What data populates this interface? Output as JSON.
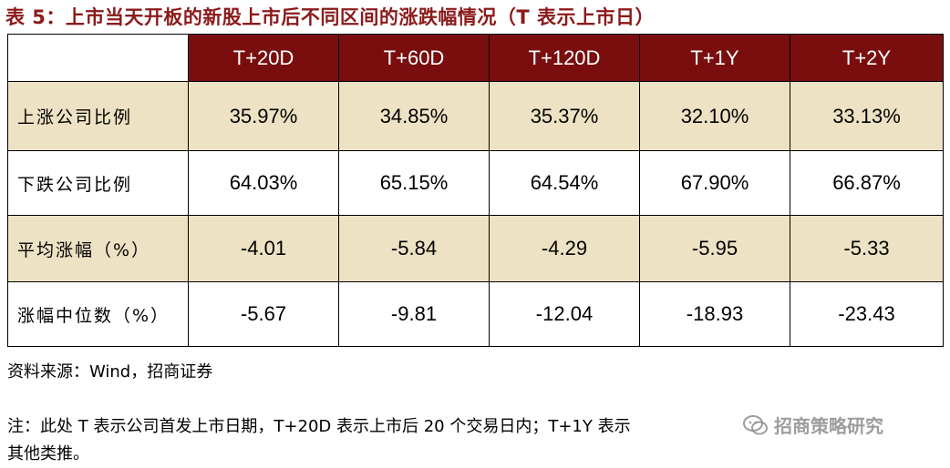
{
  "title": "表 5：上市当天开板的新股上市后不同区间的涨跌幅情况（T 表示上市日）",
  "table": {
    "columns": [
      "T+20D",
      "T+60D",
      "T+120D",
      "T+1Y",
      "T+2Y"
    ],
    "rows": [
      {
        "label": "上涨公司比例",
        "values": [
          "35.97%",
          "34.85%",
          "35.37%",
          "32.10%",
          "33.13%"
        ]
      },
      {
        "label": "下跌公司比例",
        "values": [
          "64.03%",
          "65.15%",
          "64.54%",
          "67.90%",
          "66.87%"
        ]
      },
      {
        "label": "平均涨幅（%）",
        "values": [
          "-4.01",
          "-5.84",
          "-4.29",
          "-5.95",
          "-5.33"
        ]
      },
      {
        "label": "涨幅中位数（%）",
        "values": [
          "-5.67",
          "-9.81",
          "-12.04",
          "-18.93",
          "-23.43"
        ]
      }
    ]
  },
  "source": "资料来源：Wind，招商证券",
  "note": {
    "line1": "注：此处 T 表示公司首发上市日期，T+20D 表示上市后 20 个交易日内；T+1Y 表示",
    "line2": "其他类推。"
  },
  "watermark": {
    "text": "招商策略研究",
    "icon": "wechat-icon"
  },
  "colors": {
    "title": "#8B1A1A",
    "header_bg": "#7A0E0E",
    "shade_bg": "#EDE2C4"
  }
}
